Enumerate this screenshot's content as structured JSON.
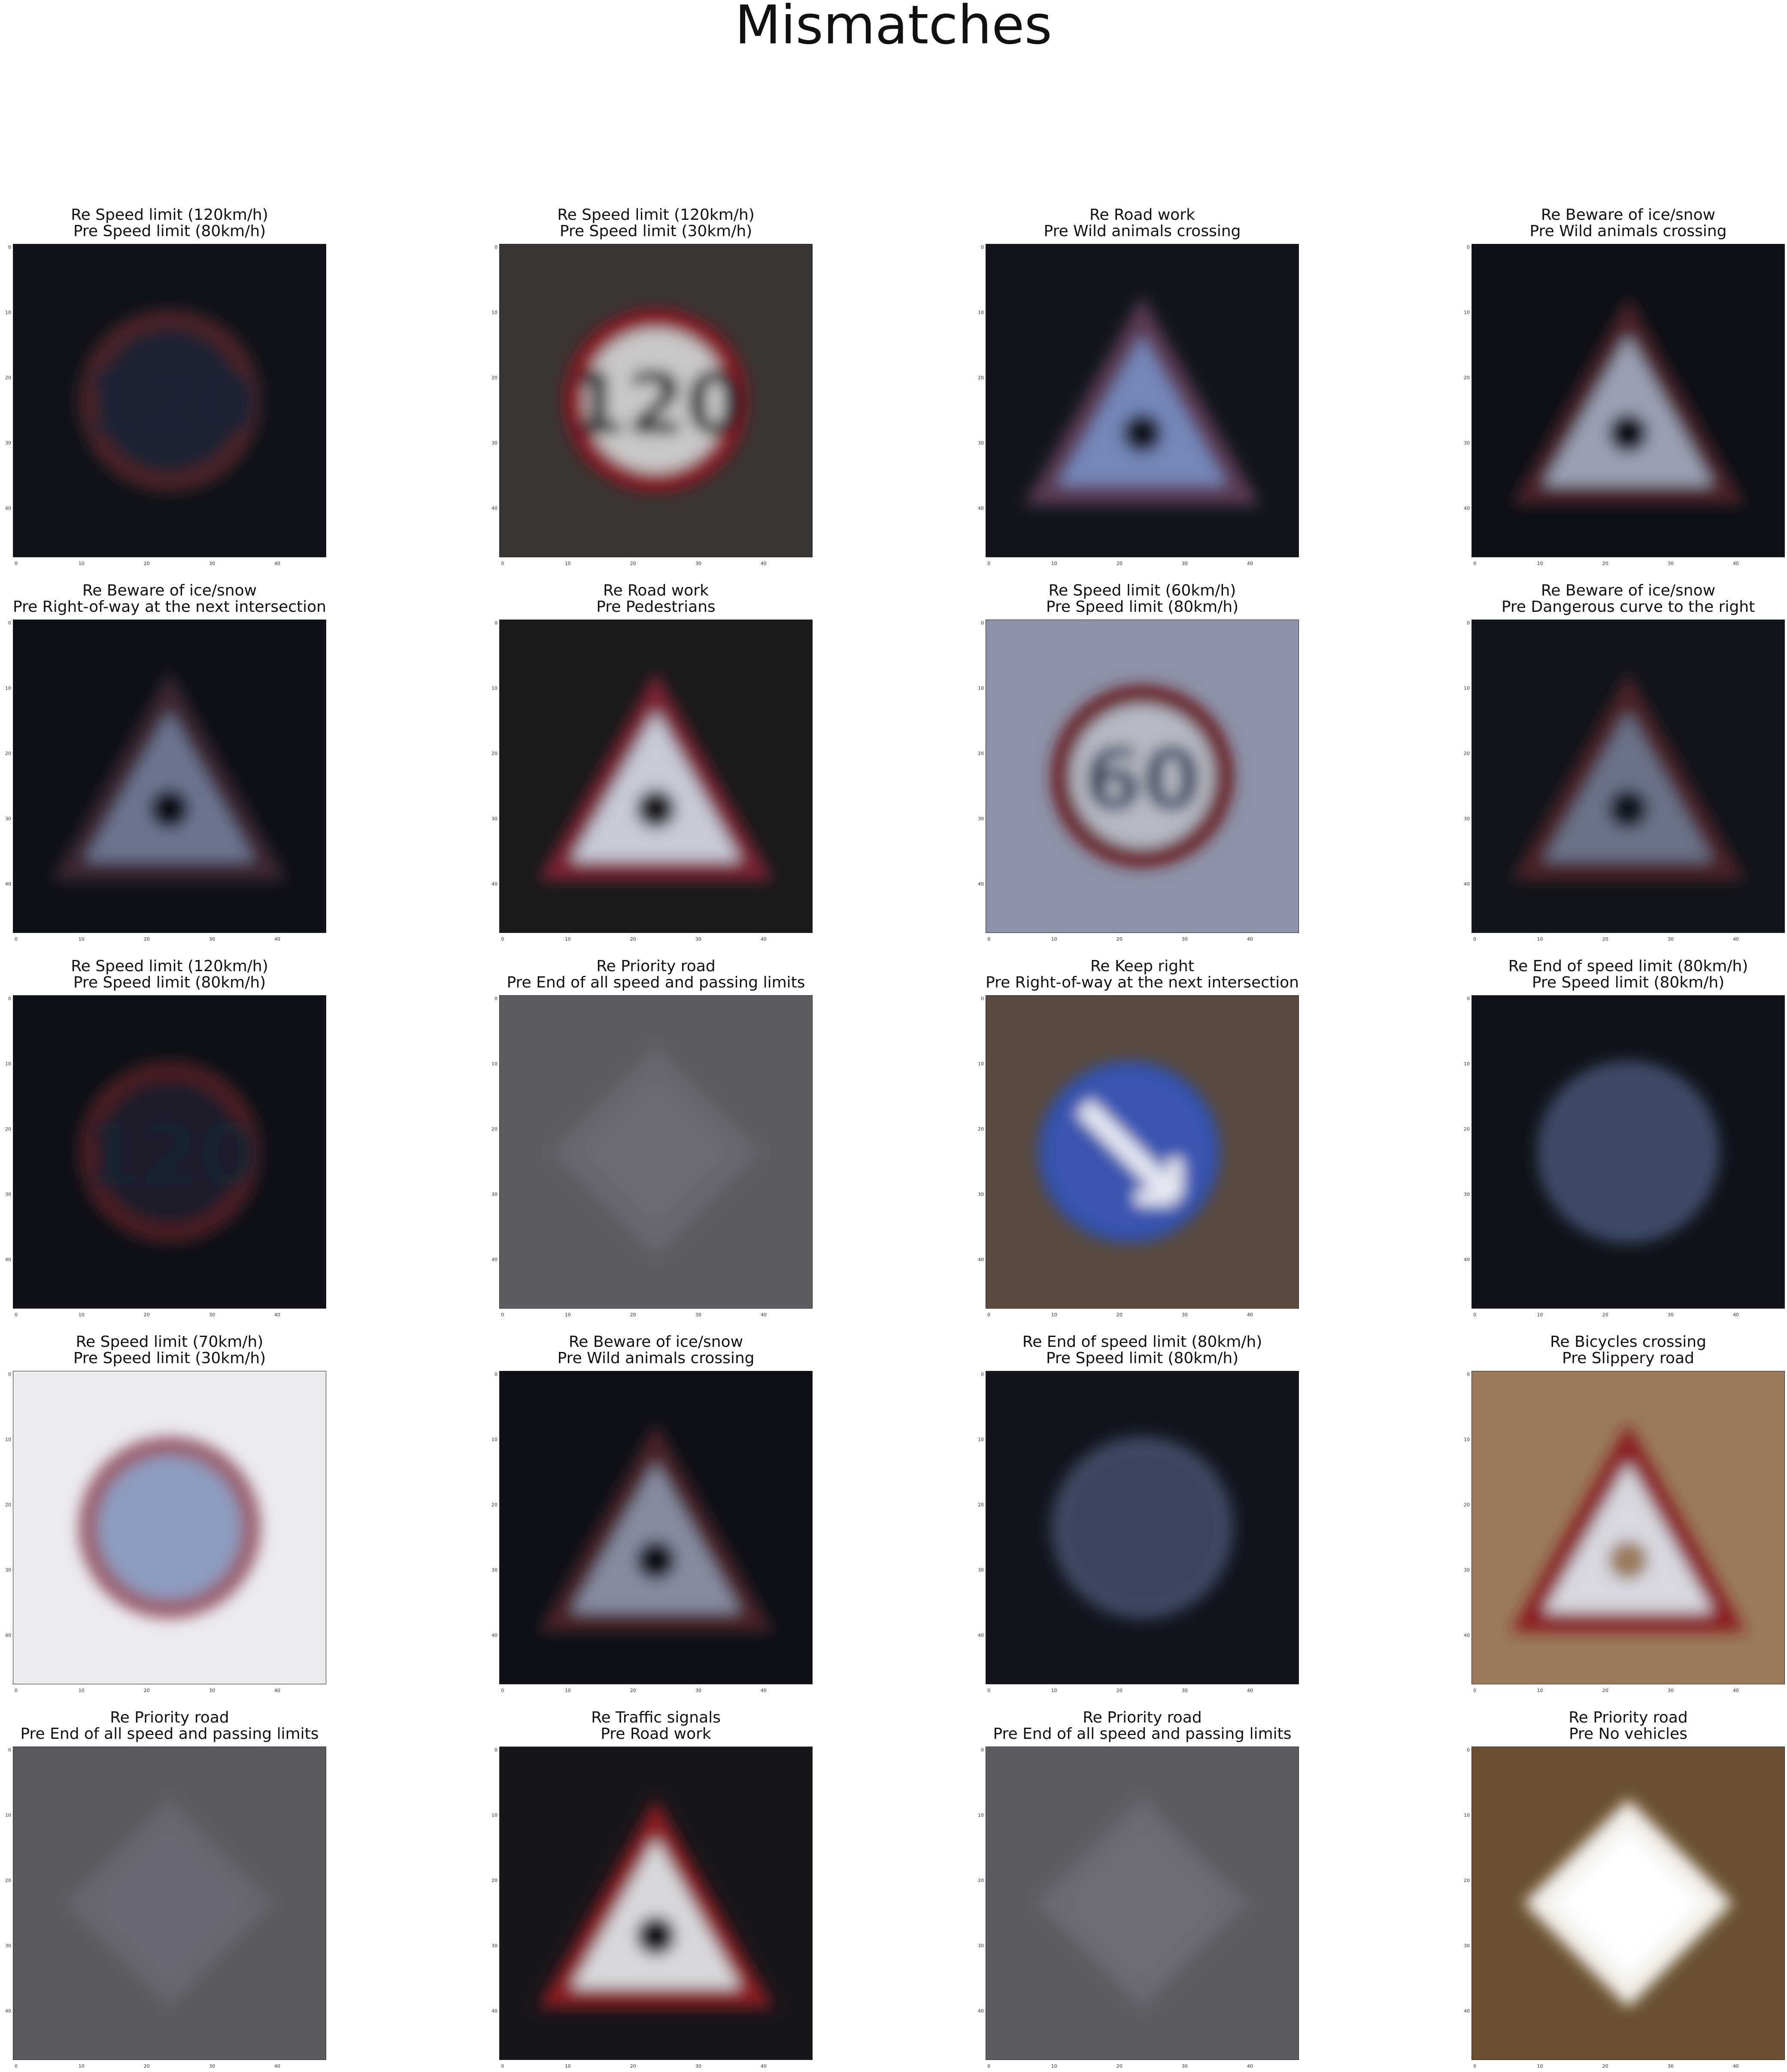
{
  "figure_title": "Mismatches",
  "tick_labels": [
    "0",
    "10",
    "20",
    "30",
    "40"
  ],
  "panels": [
    {
      "title_real": "Re Speed limit (120km/h)",
      "title_pred": "Pre Speed limit (80km/h)",
      "sign": "circle",
      "bg": "#10131a",
      "fg": "#4a2228",
      "inner": "#1c2230",
      "glyph": "120",
      "glyph_color": "#1b2336"
    },
    {
      "title_real": "Re Speed limit (120km/h)",
      "title_pred": "Pre Speed limit (30km/h)",
      "sign": "circle",
      "bg": "#3a3533",
      "fg": "#8a1820",
      "inner": "#c9c7c8",
      "glyph": "120",
      "glyph_color": "#101420"
    },
    {
      "title_real": "Re Road work",
      "title_pred": "Pre Wild animals crossing",
      "sign": "triangle",
      "bg": "#12151d",
      "fg": "#5a3a52",
      "inner": "#7486b8",
      "glyph": "",
      "glyph_color": "#223"
    },
    {
      "title_real": "Re Beware of ice/snow",
      "title_pred": "Pre Wild animals crossing",
      "sign": "triangle",
      "bg": "#0d1017",
      "fg": "#4a2228",
      "inner": "#9aa0b4",
      "glyph": "",
      "glyph_color": "#223"
    },
    {
      "title_real": "Re Beware of ice/snow",
      "title_pred": "Pre Right-of-way at the next intersection",
      "sign": "triangle",
      "bg": "#0e1118",
      "fg": "#3e2530",
      "inner": "#6c7590",
      "glyph": "",
      "glyph_color": "#223"
    },
    {
      "title_real": "Re Road work",
      "title_pred": "Pre Pedestrians",
      "sign": "triangle",
      "bg": "#1a1a1c",
      "fg": "#7a2230",
      "inner": "#c8cad8",
      "glyph": "",
      "glyph_color": "#223"
    },
    {
      "title_real": "Re Speed limit (60km/h)",
      "title_pred": "Pre Speed limit (80km/h)",
      "sign": "circle",
      "bg": "#8c93a8",
      "fg": "#6b1c22",
      "inner": "#b5b9c4",
      "glyph": "60",
      "glyph_color": "#2a3a55"
    },
    {
      "title_real": "Re Beware of ice/snow",
      "title_pred": "Pre Dangerous curve to the right",
      "sign": "triangle",
      "bg": "#11141b",
      "fg": "#4a2428",
      "inner": "#6a7288",
      "glyph": "",
      "glyph_color": "#223"
    },
    {
      "title_real": "Re Speed limit (120km/h)",
      "title_pred": "Pre Speed limit (80km/h)",
      "sign": "circle",
      "bg": "#0e1118",
      "fg": "#4a1e24",
      "inner": "#1a1f2c",
      "glyph": "120",
      "glyph_color": "#182033"
    },
    {
      "title_real": "Re Priority road",
      "title_pred": "Pre End of all speed and passing limits",
      "sign": "diamond",
      "bg": "#5e5c62",
      "fg": "#67666e",
      "inner": "#6d6c76",
      "glyph": "",
      "glyph_color": "#223"
    },
    {
      "title_real": "Re Keep right",
      "title_pred": "Pre Right-of-way at the next intersection",
      "sign": "bluecircle",
      "bg": "#5a4a40",
      "fg": "#2f4fa8",
      "inner": "#3a55b0",
      "glyph": "",
      "glyph_color": "#dde"
    },
    {
      "title_real": "Re End of speed limit (80km/h)",
      "title_pred": "Pre Speed limit (80km/h)",
      "sign": "circle",
      "bg": "#10131a",
      "fg": "#3c4a66",
      "inner": "#3a4866",
      "glyph": "",
      "glyph_color": "#223"
    },
    {
      "title_real": "Re Speed limit (70km/h)",
      "title_pred": "Pre Speed limit (30km/h)",
      "sign": "circle",
      "bg": "#ecebf0",
      "fg": "#9a6070",
      "inner": "#8d9cc0",
      "glyph": "",
      "glyph_color": "#334"
    },
    {
      "title_real": "Re Beware of ice/snow",
      "title_pred": "Pre Wild animals crossing",
      "sign": "triangle",
      "bg": "#0e1118",
      "fg": "#4a2228",
      "inner": "#858ca0",
      "glyph": "",
      "glyph_color": "#223"
    },
    {
      "title_real": "Re End of speed limit (80km/h)",
      "title_pred": "Pre Speed limit (80km/h)",
      "sign": "circle",
      "bg": "#12151d",
      "fg": "#3c4660",
      "inner": "#3a4460",
      "glyph": "",
      "glyph_color": "#223"
    },
    {
      "title_real": "Re Bicycles crossing",
      "title_pred": "Pre Slippery road",
      "sign": "triangle",
      "bg": "#9a7a5a",
      "fg": "#8a1e22",
      "inner": "#d8d8e0",
      "glyph": "",
      "glyph_color": "#223"
    },
    {
      "title_real": "Re Priority road",
      "title_pred": "Pre End of all speed and passing limits",
      "sign": "diamond",
      "bg": "#5c5a5e",
      "fg": "#666670",
      "inner": "#6a6a76",
      "glyph": "",
      "glyph_color": "#223"
    },
    {
      "title_real": "Re Traffic signals",
      "title_pred": "Pre Road work",
      "sign": "triangle",
      "bg": "#18161a",
      "fg": "#8a1e22",
      "inner": "#d8d8dc",
      "glyph": "",
      "glyph_color": "#223"
    },
    {
      "title_real": "Re Priority road",
      "title_pred": "Pre End of all speed and passing limits",
      "sign": "diamond",
      "bg": "#5e5c62",
      "fg": "#6a6a74",
      "inner": "#6e6e78",
      "glyph": "",
      "glyph_color": "#223"
    },
    {
      "title_real": "Re Priority road",
      "title_pred": "Pre No vehicles",
      "sign": "diamond",
      "bg": "#6a5030",
      "fg": "#f4f2ee",
      "inner": "#ffffff",
      "glyph": "",
      "glyph_color": "#223"
    }
  ]
}
